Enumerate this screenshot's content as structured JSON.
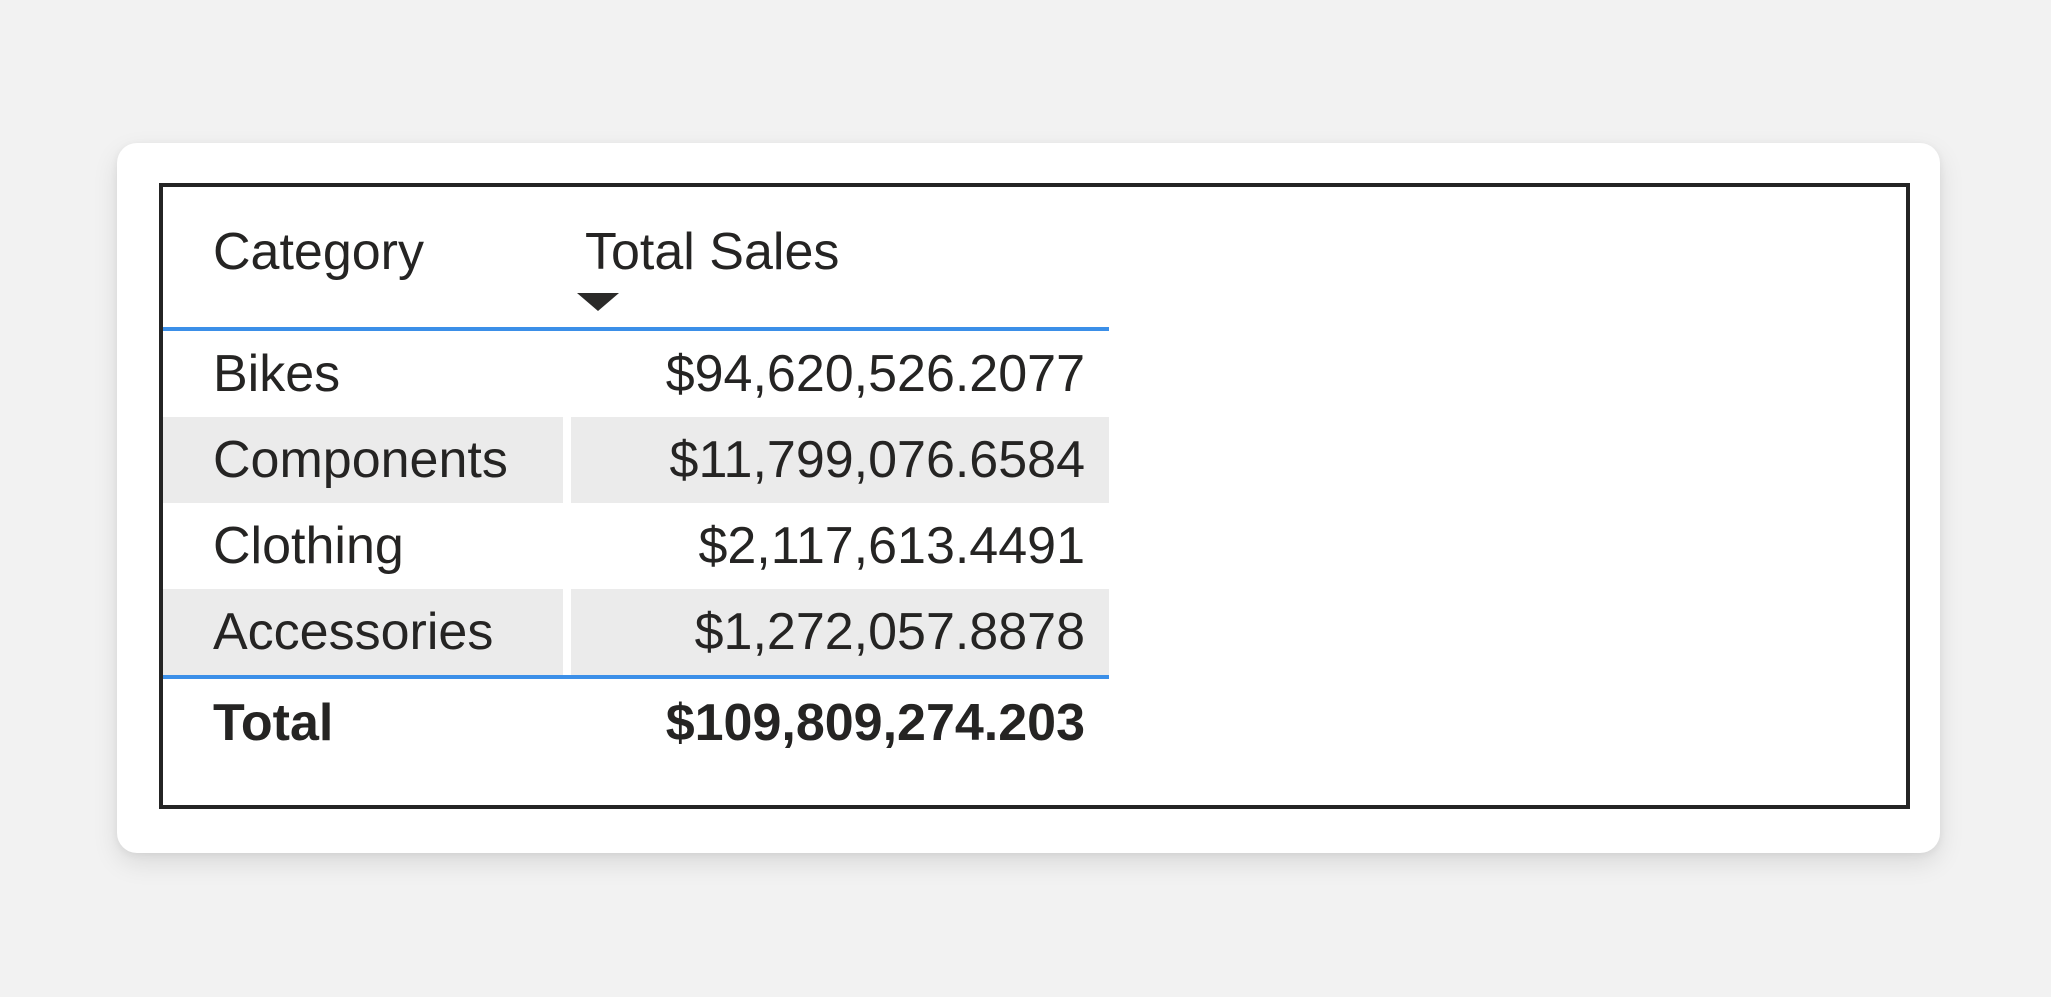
{
  "table": {
    "columns": [
      {
        "label": "Category",
        "align": "left"
      },
      {
        "label": "Total Sales",
        "align": "right",
        "sorted": "descending"
      }
    ],
    "rows": [
      {
        "category": "Bikes",
        "total_sales": "$94,620,526.2077"
      },
      {
        "category": "Components",
        "total_sales": "$11,799,076.6584"
      },
      {
        "category": "Clothing",
        "total_sales": "$2,117,613.4491"
      },
      {
        "category": "Accessories",
        "total_sales": "$1,272,057.8878"
      }
    ],
    "total_row": {
      "label": "Total",
      "total_sales": "$109,809,274.203"
    }
  },
  "chart_data": {
    "type": "table",
    "columns": [
      "Category",
      "Total Sales"
    ],
    "rows": [
      [
        "Bikes",
        94620526.2077
      ],
      [
        "Components",
        11799076.6584
      ],
      [
        "Clothing",
        2117613.4491
      ],
      [
        "Accessories",
        1272057.8878
      ]
    ],
    "total": [
      "Total",
      109809274.203
    ],
    "sort": {
      "column": "Total Sales",
      "direction": "descending"
    }
  },
  "icons": {
    "sort_descending": "triangle-down"
  },
  "colors": {
    "page_background": "#f2f2f2",
    "card_background": "#ffffff",
    "frame_border": "#242424",
    "accent_separator": "#3b8fe8",
    "row_band": "#ebebeb",
    "text": "#252423"
  }
}
